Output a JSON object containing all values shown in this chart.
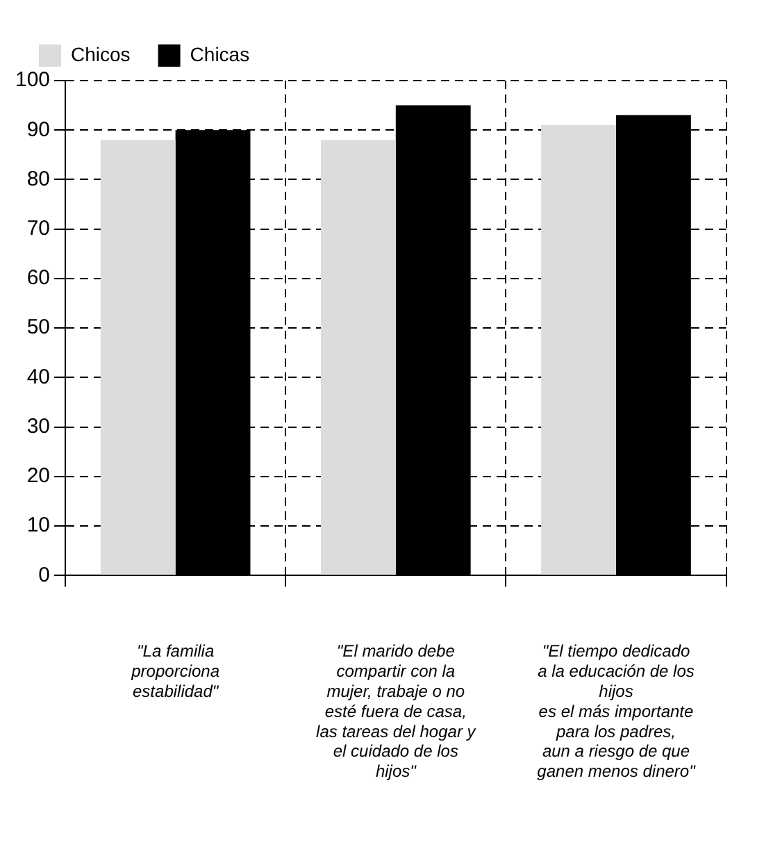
{
  "chart_data": {
    "type": "bar",
    "categories": [
      "\"La familia\nproporciona\nestabilidad\"",
      "\"El marido debe\ncompartir con la\nmujer, trabaje o no\nesté fuera de casa,\nlas tareas del hogar y\nel cuidado de los\nhijos\"",
      "\"El tiempo dedicado\na la educación de los\nhijos\nes el más importante\npara los padres,\naun a riesgo de que\nganen menos dinero\""
    ],
    "series": [
      {
        "name": "Chicos",
        "color": "#dcdcdc",
        "values": [
          88,
          88,
          91
        ]
      },
      {
        "name": "Chicas",
        "color": "#000000",
        "values": [
          90,
          95,
          93
        ]
      }
    ],
    "ylim": [
      0,
      100
    ],
    "yticks": [
      0,
      10,
      20,
      30,
      40,
      50,
      60,
      70,
      80,
      90,
      100
    ],
    "grid": true,
    "legend": "top left"
  }
}
